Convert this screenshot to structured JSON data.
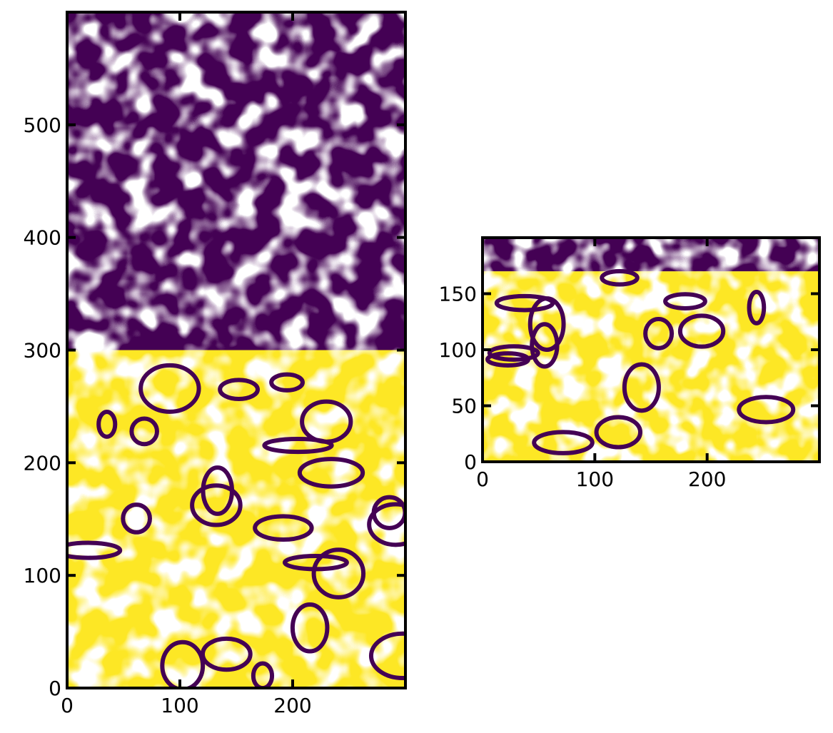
{
  "chart_data": [
    {
      "type": "heatmap",
      "title": "",
      "xlabel": "",
      "ylabel": "",
      "xlim": [
        0,
        300
      ],
      "ylim": [
        0,
        600
      ],
      "xticks": [
        0,
        100,
        200
      ],
      "yticks": [
        0,
        100,
        200,
        300,
        400,
        500
      ],
      "tick_direction": "in",
      "ticks_on_all_sides": true,
      "grid": false,
      "colors": {
        "upper_phase": "#440154",
        "lower_phase": "#fde725",
        "interface": "#ffffff",
        "contour": "#440154"
      },
      "regions": {
        "upper_phase_y_range": [
          300,
          600
        ],
        "lower_phase_y_range": [
          0,
          300
        ],
        "lower_phase_outlined": true
      }
    },
    {
      "type": "heatmap",
      "title": "",
      "xlabel": "",
      "ylabel": "",
      "xlim": [
        0,
        300
      ],
      "ylim": [
        0,
        200
      ],
      "xticks": [
        0,
        100,
        200
      ],
      "yticks": [
        0,
        50,
        100,
        150
      ],
      "tick_direction": "in",
      "ticks_on_all_sides": true,
      "grid": false,
      "colors": {
        "upper_phase": "#440154",
        "lower_phase": "#fde725",
        "interface": "#ffffff",
        "contour": "#440154"
      },
      "regions": {
        "upper_phase_y_range": [
          170,
          200
        ],
        "lower_phase_y_range": [
          0,
          170
        ],
        "lower_phase_outlined": true
      }
    }
  ]
}
